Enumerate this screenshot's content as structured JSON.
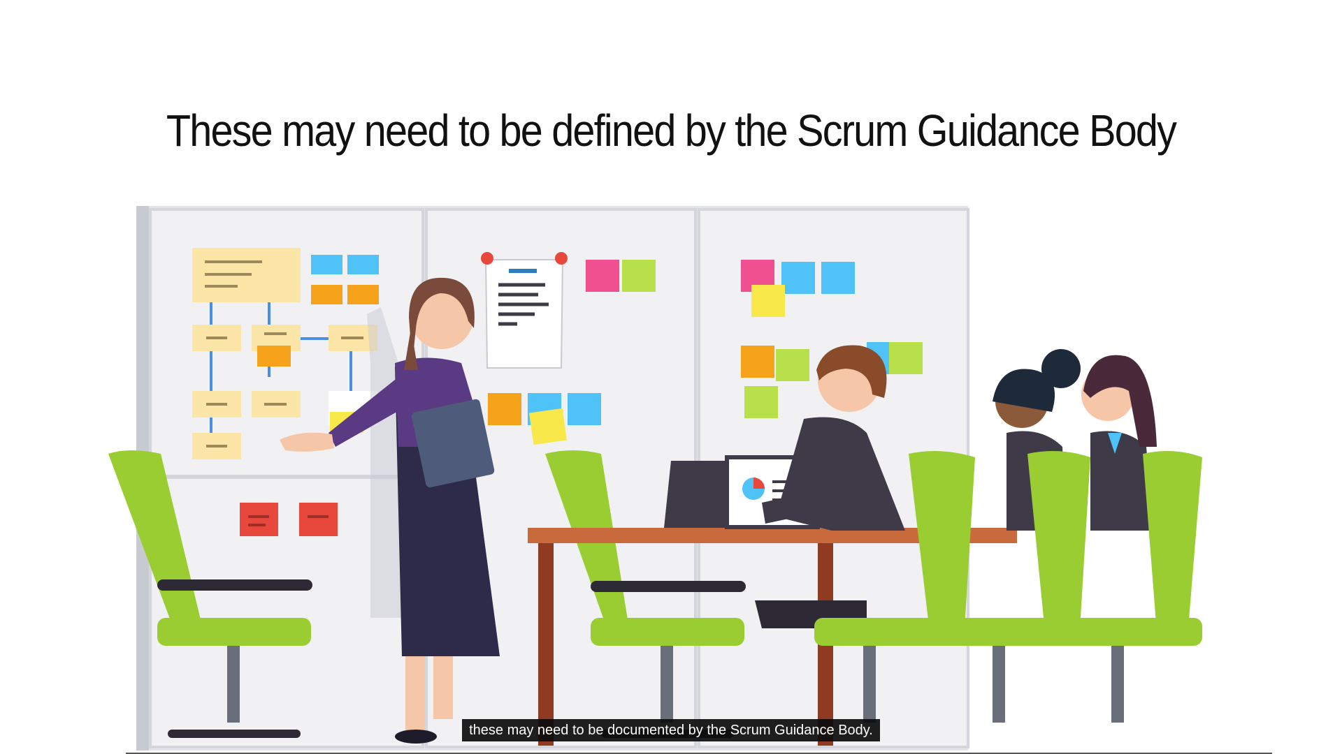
{
  "slide": {
    "title": "These may need to be defined by the Scrum Guidance Body"
  },
  "caption": {
    "text": "these may need to be documented by the Scrum Guidance Body."
  },
  "illustration": {
    "subject": "meeting-room-presentation"
  },
  "colors": {
    "chair_green": "#9ACD32",
    "chair_green_dark": "#7FAF22",
    "board": "#F1F1F3",
    "board_frame": "#D5D6DC",
    "table_top": "#C96A3D",
    "table_legs": "#8E3B22",
    "presenter_dress": "#2D2A4A",
    "presenter_top": "#5A3A82",
    "suit_dark": "#3E3A48",
    "sticky_blue": "#4FC3F7",
    "sticky_orange": "#F7A21B",
    "sticky_yellow": "#F9E84A",
    "sticky_pink": "#F0508F",
    "sticky_lime": "#B7E04A",
    "sticky_red": "#E8473C",
    "note_cream": "#FBE6A8"
  }
}
